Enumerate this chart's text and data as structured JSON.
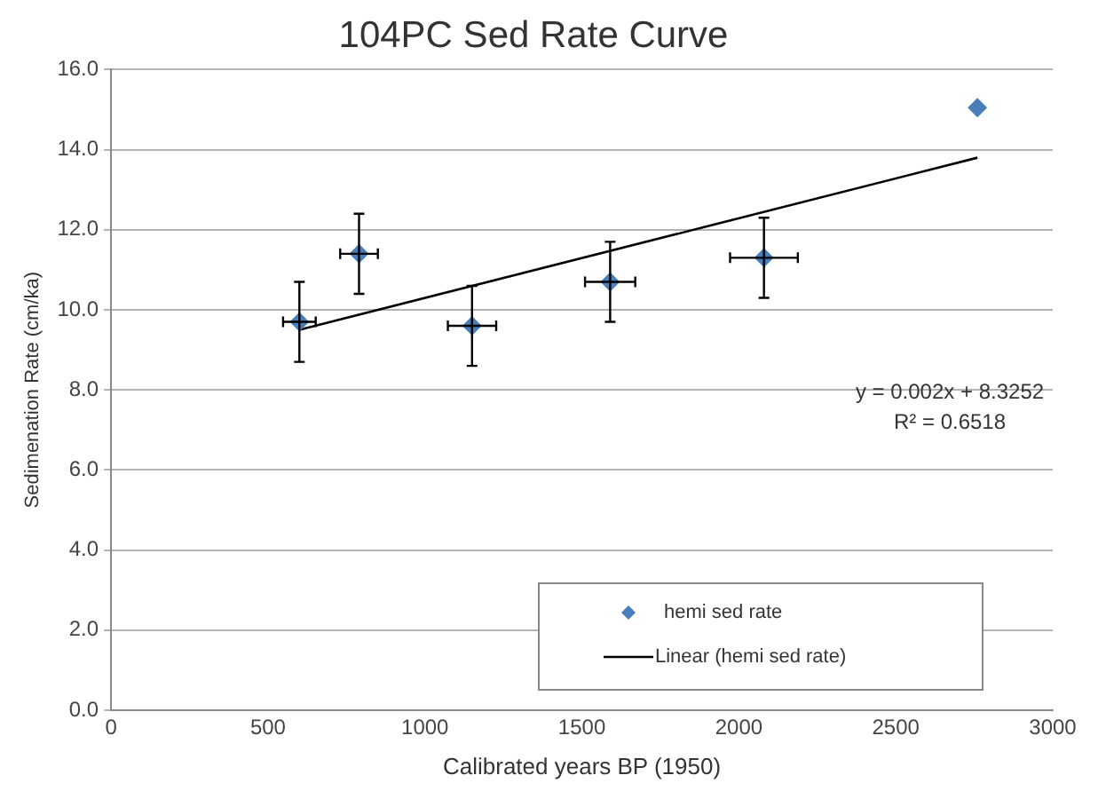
{
  "chart_data": {
    "type": "scatter",
    "title": "104PC Sed Rate Curve",
    "xlabel": "Calibrated years BP (1950)",
    "ylabel": "Sedimenation Rate (cm/ka)",
    "series": [
      {
        "name": "hemi sed rate",
        "color": "#4a7ebb",
        "marker": "diamond",
        "x": [
          600,
          790,
          1150,
          1590,
          2080,
          2760
        ],
        "values": [
          9.7,
          11.4,
          9.6,
          10.7,
          11.3,
          15.05
        ],
        "errors": [
          1.0,
          1.0,
          1.0,
          1.0,
          1.0,
          null
        ],
        "xerrors": [
          52,
          60,
          77,
          80,
          108,
          null
        ]
      },
      {
        "name": "Linear (hemi sed rate)",
        "type": "line",
        "color": "#000000",
        "marker": "none",
        "x": [
          600,
          2760
        ],
        "values": [
          9.5,
          13.8
        ]
      }
    ],
    "xlim": [
      0,
      3000
    ],
    "xticks": [
      0,
      500,
      1000,
      1500,
      2000,
      2500,
      3000
    ],
    "ylim": [
      0,
      16
    ],
    "yticks": [
      {
        "value": 0,
        "label": "0.0"
      },
      {
        "value": 2,
        "label": "2.0"
      },
      {
        "value": 4,
        "label": "4.0"
      },
      {
        "value": 6,
        "label": "6.0"
      },
      {
        "value": 8,
        "label": "8.0"
      },
      {
        "value": 10,
        "label": "10.0"
      },
      {
        "value": 12,
        "label": "12.0"
      },
      {
        "value": 14,
        "label": "14.0"
      },
      {
        "value": 16,
        "label": "16.0"
      }
    ],
    "grid": "y",
    "legend": "bottom right",
    "annotations": [
      "y = 0.002x + 8.3252",
      "R² = 0.6518"
    ]
  }
}
